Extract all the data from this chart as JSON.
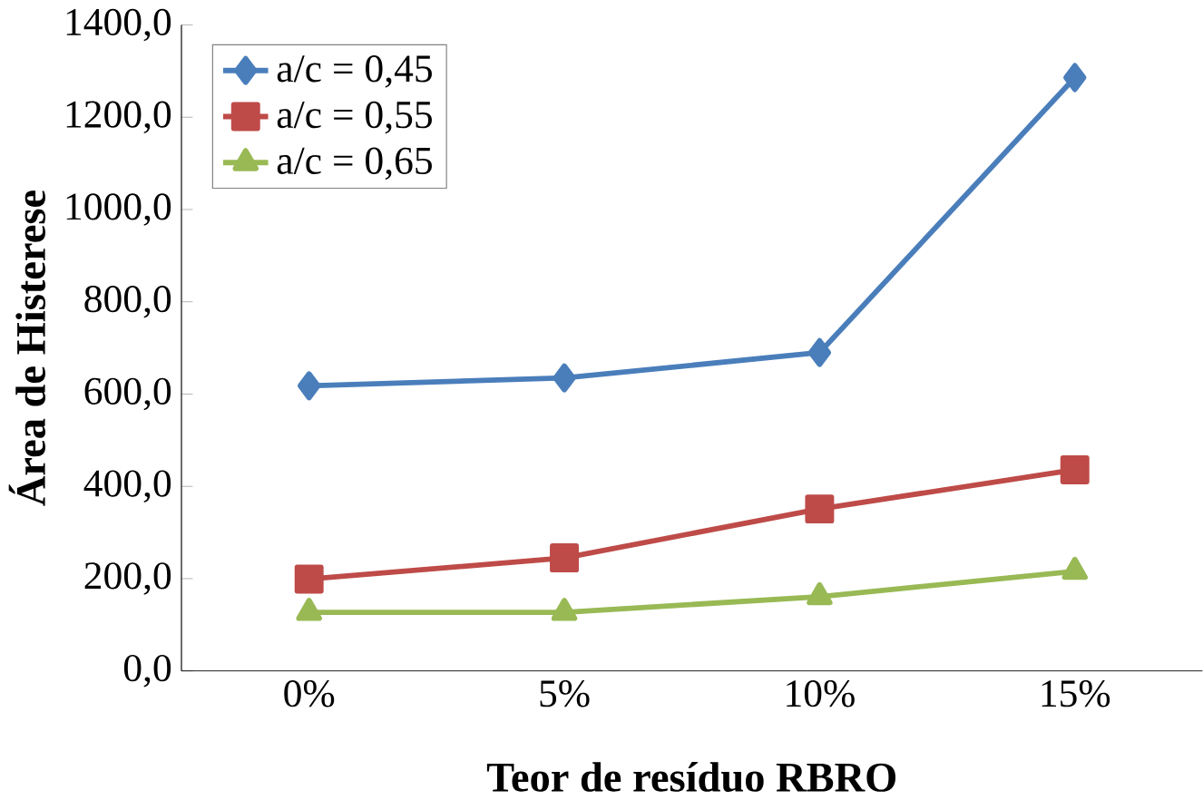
{
  "chart_data": {
    "type": "line",
    "xlabel": "Teor de resíduo RBRO",
    "ylabel": "Área de Histerese",
    "categories": [
      "0%",
      "5%",
      "10%",
      "15%"
    ],
    "series": [
      {
        "name": "a/c = 0,45",
        "color": "#4a7ebb",
        "marker": "diamond",
        "values": [
          618,
          635,
          690,
          1286
        ]
      },
      {
        "name": "a/c = 0,55",
        "color": "#be4b48",
        "marker": "square",
        "values": [
          199,
          245,
          351,
          436
        ]
      },
      {
        "name": "a/c = 0,65",
        "color": "#98b954",
        "marker": "triangle",
        "values": [
          127,
          127,
          161,
          216
        ]
      }
    ],
    "ylim": [
      0,
      1400
    ],
    "yticks": [
      {
        "value": 0,
        "label": "0,0"
      },
      {
        "value": 200,
        "label": "200,0"
      },
      {
        "value": 400,
        "label": "400,0"
      },
      {
        "value": 600,
        "label": "600,0"
      },
      {
        "value": 800,
        "label": "800,0"
      },
      {
        "value": 1000,
        "label": "1000,0"
      },
      {
        "value": 1200,
        "label": "1200,0"
      },
      {
        "value": 1400,
        "label": "1400,0"
      }
    ],
    "grid": false,
    "legend": "top left"
  }
}
